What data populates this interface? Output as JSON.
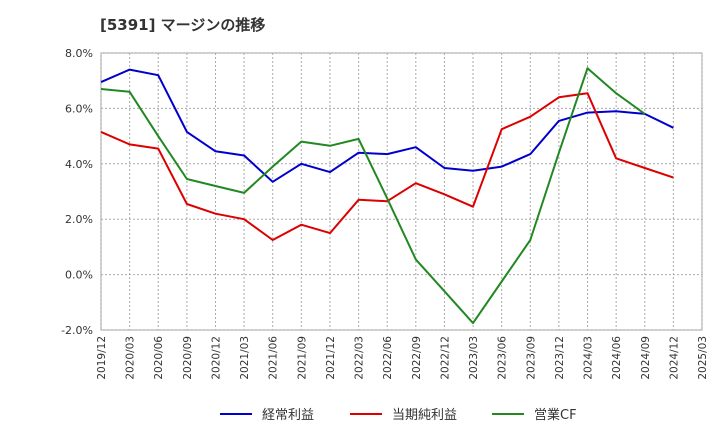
{
  "chart_data": {
    "type": "line",
    "title": "[5391]  マージンの推移",
    "xlabel": "",
    "ylabel": "",
    "x": [
      "2019/12",
      "2020/03",
      "2020/06",
      "2020/09",
      "2020/12",
      "2021/03",
      "2021/06",
      "2021/09",
      "2021/12",
      "2022/03",
      "2022/06",
      "2022/09",
      "2022/12",
      "2023/03",
      "2023/06",
      "2023/09",
      "2023/12",
      "2024/03",
      "2024/06",
      "2024/09",
      "2024/12",
      "2025/03"
    ],
    "yticks": [
      "8.0%",
      "6.0%",
      "4.0%",
      "2.0%",
      "0.0%",
      "-2.0%"
    ],
    "ylim": [
      -2.0,
      8.0
    ],
    "grid": true,
    "legend_position": "bottom",
    "series": [
      {
        "name": "経常利益",
        "color": "#0000cc",
        "values": [
          6.95,
          7.4,
          7.2,
          5.15,
          4.45,
          4.3,
          3.35,
          4.0,
          3.7,
          4.4,
          4.35,
          4.6,
          3.85,
          3.75,
          3.9,
          4.35,
          5.55,
          5.85,
          5.9,
          5.8,
          5.3,
          null
        ]
      },
      {
        "name": "当期純利益",
        "color": "#dd0000",
        "values": [
          5.15,
          4.7,
          4.55,
          2.55,
          2.2,
          2.0,
          1.25,
          1.8,
          1.5,
          2.7,
          2.65,
          3.3,
          2.9,
          2.45,
          5.25,
          5.7,
          6.4,
          6.55,
          4.2,
          3.85,
          3.5,
          null
        ]
      },
      {
        "name": "営業CF",
        "color": "#228822",
        "values": [
          6.7,
          6.6,
          5.0,
          3.45,
          3.2,
          2.95,
          3.9,
          4.8,
          4.65,
          4.9,
          2.75,
          0.55,
          -0.6,
          -1.75,
          -0.25,
          1.25,
          4.4,
          7.45,
          6.55,
          5.8,
          null,
          null
        ]
      }
    ]
  }
}
